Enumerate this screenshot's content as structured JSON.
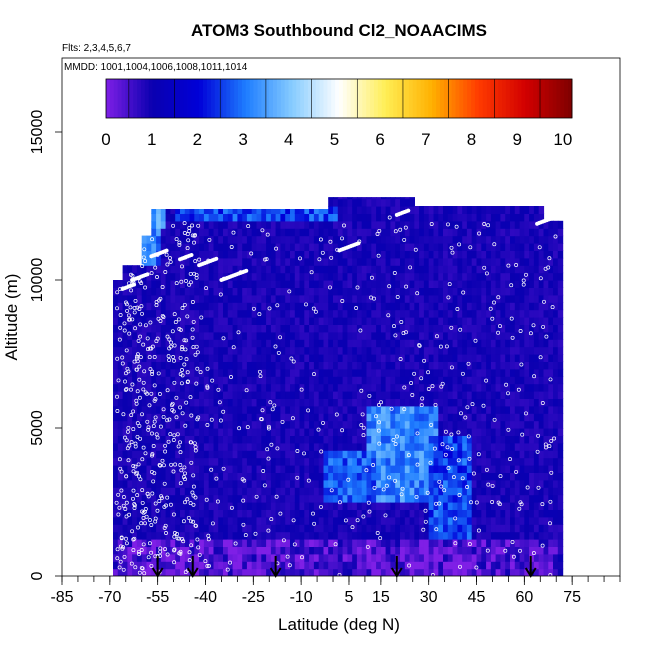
{
  "chart_data": {
    "type": "heatmap",
    "title": "ATOM3 Southbound Cl2_NOAACIMS",
    "subtitle_flights": "Flts: 2,3,4,5,6,7",
    "subtitle_dates": "MMDD: 1001,1004,1006,1008,1011,1014",
    "xlabel": "Latitude (deg N)",
    "ylabel": "Altitude (m)",
    "xlim": [
      -85,
      90
    ],
    "ylim": [
      0,
      17500
    ],
    "x_ticks": [
      -85,
      -70,
      -55,
      -40,
      -25,
      -10,
      5,
      15,
      30,
      45,
      60,
      75
    ],
    "y_ticks": [
      0,
      5000,
      10000,
      15000
    ],
    "color_scale": {
      "min": 0,
      "max": 10.2,
      "ticks": [
        0,
        1,
        2,
        3,
        4,
        5,
        6,
        7,
        8,
        9,
        10
      ],
      "colors": [
        "#7f1fe6",
        "#0a00b0",
        "#0000d8",
        "#1e7dff",
        "#87ccff",
        "#ffffff",
        "#ffee55",
        "#ffb000",
        "#ff3a00",
        "#d20000",
        "#7e0000"
      ]
    },
    "curtain_extent": {
      "lat_range": [
        -69,
        71
      ],
      "alt_range": [
        0,
        12800
      ]
    },
    "enhanced_regions": [
      {
        "lat_range": [
          -60,
          -55
        ],
        "alt_range": [
          10300,
          11500
        ],
        "value": 3.0
      },
      {
        "lat_range": [
          -58,
          -54
        ],
        "alt_range": [
          11700,
          12300
        ],
        "value": 3.5
      },
      {
        "lat_range": [
          -50,
          0
        ],
        "alt_range": [
          12000,
          12400
        ],
        "value": 2.6
      },
      {
        "lat_range": [
          18,
          28
        ],
        "alt_range": [
          3000,
          5000
        ],
        "value": 4.7
      },
      {
        "lat_range": [
          10,
          32
        ],
        "alt_range": [
          2400,
          5600
        ],
        "value": 3.2
      },
      {
        "lat_range": [
          -3,
          12
        ],
        "alt_range": [
          2500,
          4000
        ],
        "value": 2.8
      },
      {
        "lat_range": [
          30,
          42
        ],
        "alt_range": [
          1200,
          4500
        ],
        "value": 2.6
      },
      {
        "lat_range": [
          -70,
          70
        ],
        "alt_range": [
          0,
          1200
        ],
        "value": 0.4
      }
    ],
    "arrow_markers_lat": [
      -55,
      -44,
      -18,
      20,
      62
    ],
    "grid": false,
    "legend_position": "top-inside"
  }
}
